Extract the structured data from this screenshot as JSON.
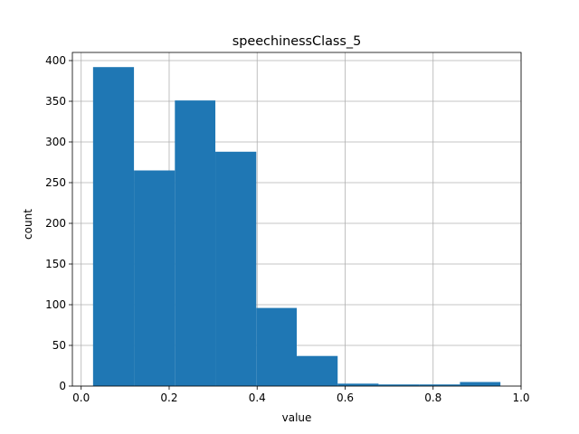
{
  "chart_data": {
    "type": "bar",
    "title": "speechinessClass_5",
    "xlabel": "value",
    "ylabel": "count",
    "xlim": [
      -0.02,
      1.0
    ],
    "ylim": [
      0,
      410
    ],
    "xticks": [
      0.0,
      0.2,
      0.4,
      0.6,
      0.8,
      1.0
    ],
    "xtick_labels": [
      "0.0",
      "0.2",
      "0.4",
      "0.6",
      "0.8",
      "1.0"
    ],
    "yticks": [
      0,
      50,
      100,
      150,
      200,
      250,
      300,
      350,
      400
    ],
    "ytick_labels": [
      "0",
      "50",
      "100",
      "150",
      "200",
      "250",
      "300",
      "350",
      "400"
    ],
    "grid": true,
    "bar_color": "#1f77b4",
    "bins": [
      {
        "x0": 0.027,
        "x1": 0.12,
        "count": 392
      },
      {
        "x0": 0.12,
        "x1": 0.213,
        "count": 265
      },
      {
        "x0": 0.213,
        "x1": 0.305,
        "count": 351
      },
      {
        "x0": 0.305,
        "x1": 0.398,
        "count": 288
      },
      {
        "x0": 0.398,
        "x1": 0.49,
        "count": 96
      },
      {
        "x0": 0.49,
        "x1": 0.583,
        "count": 37
      },
      {
        "x0": 0.583,
        "x1": 0.676,
        "count": 3
      },
      {
        "x0": 0.676,
        "x1": 0.768,
        "count": 2
      },
      {
        "x0": 0.768,
        "x1": 0.861,
        "count": 2
      },
      {
        "x0": 0.861,
        "x1": 0.953,
        "count": 5
      }
    ]
  }
}
